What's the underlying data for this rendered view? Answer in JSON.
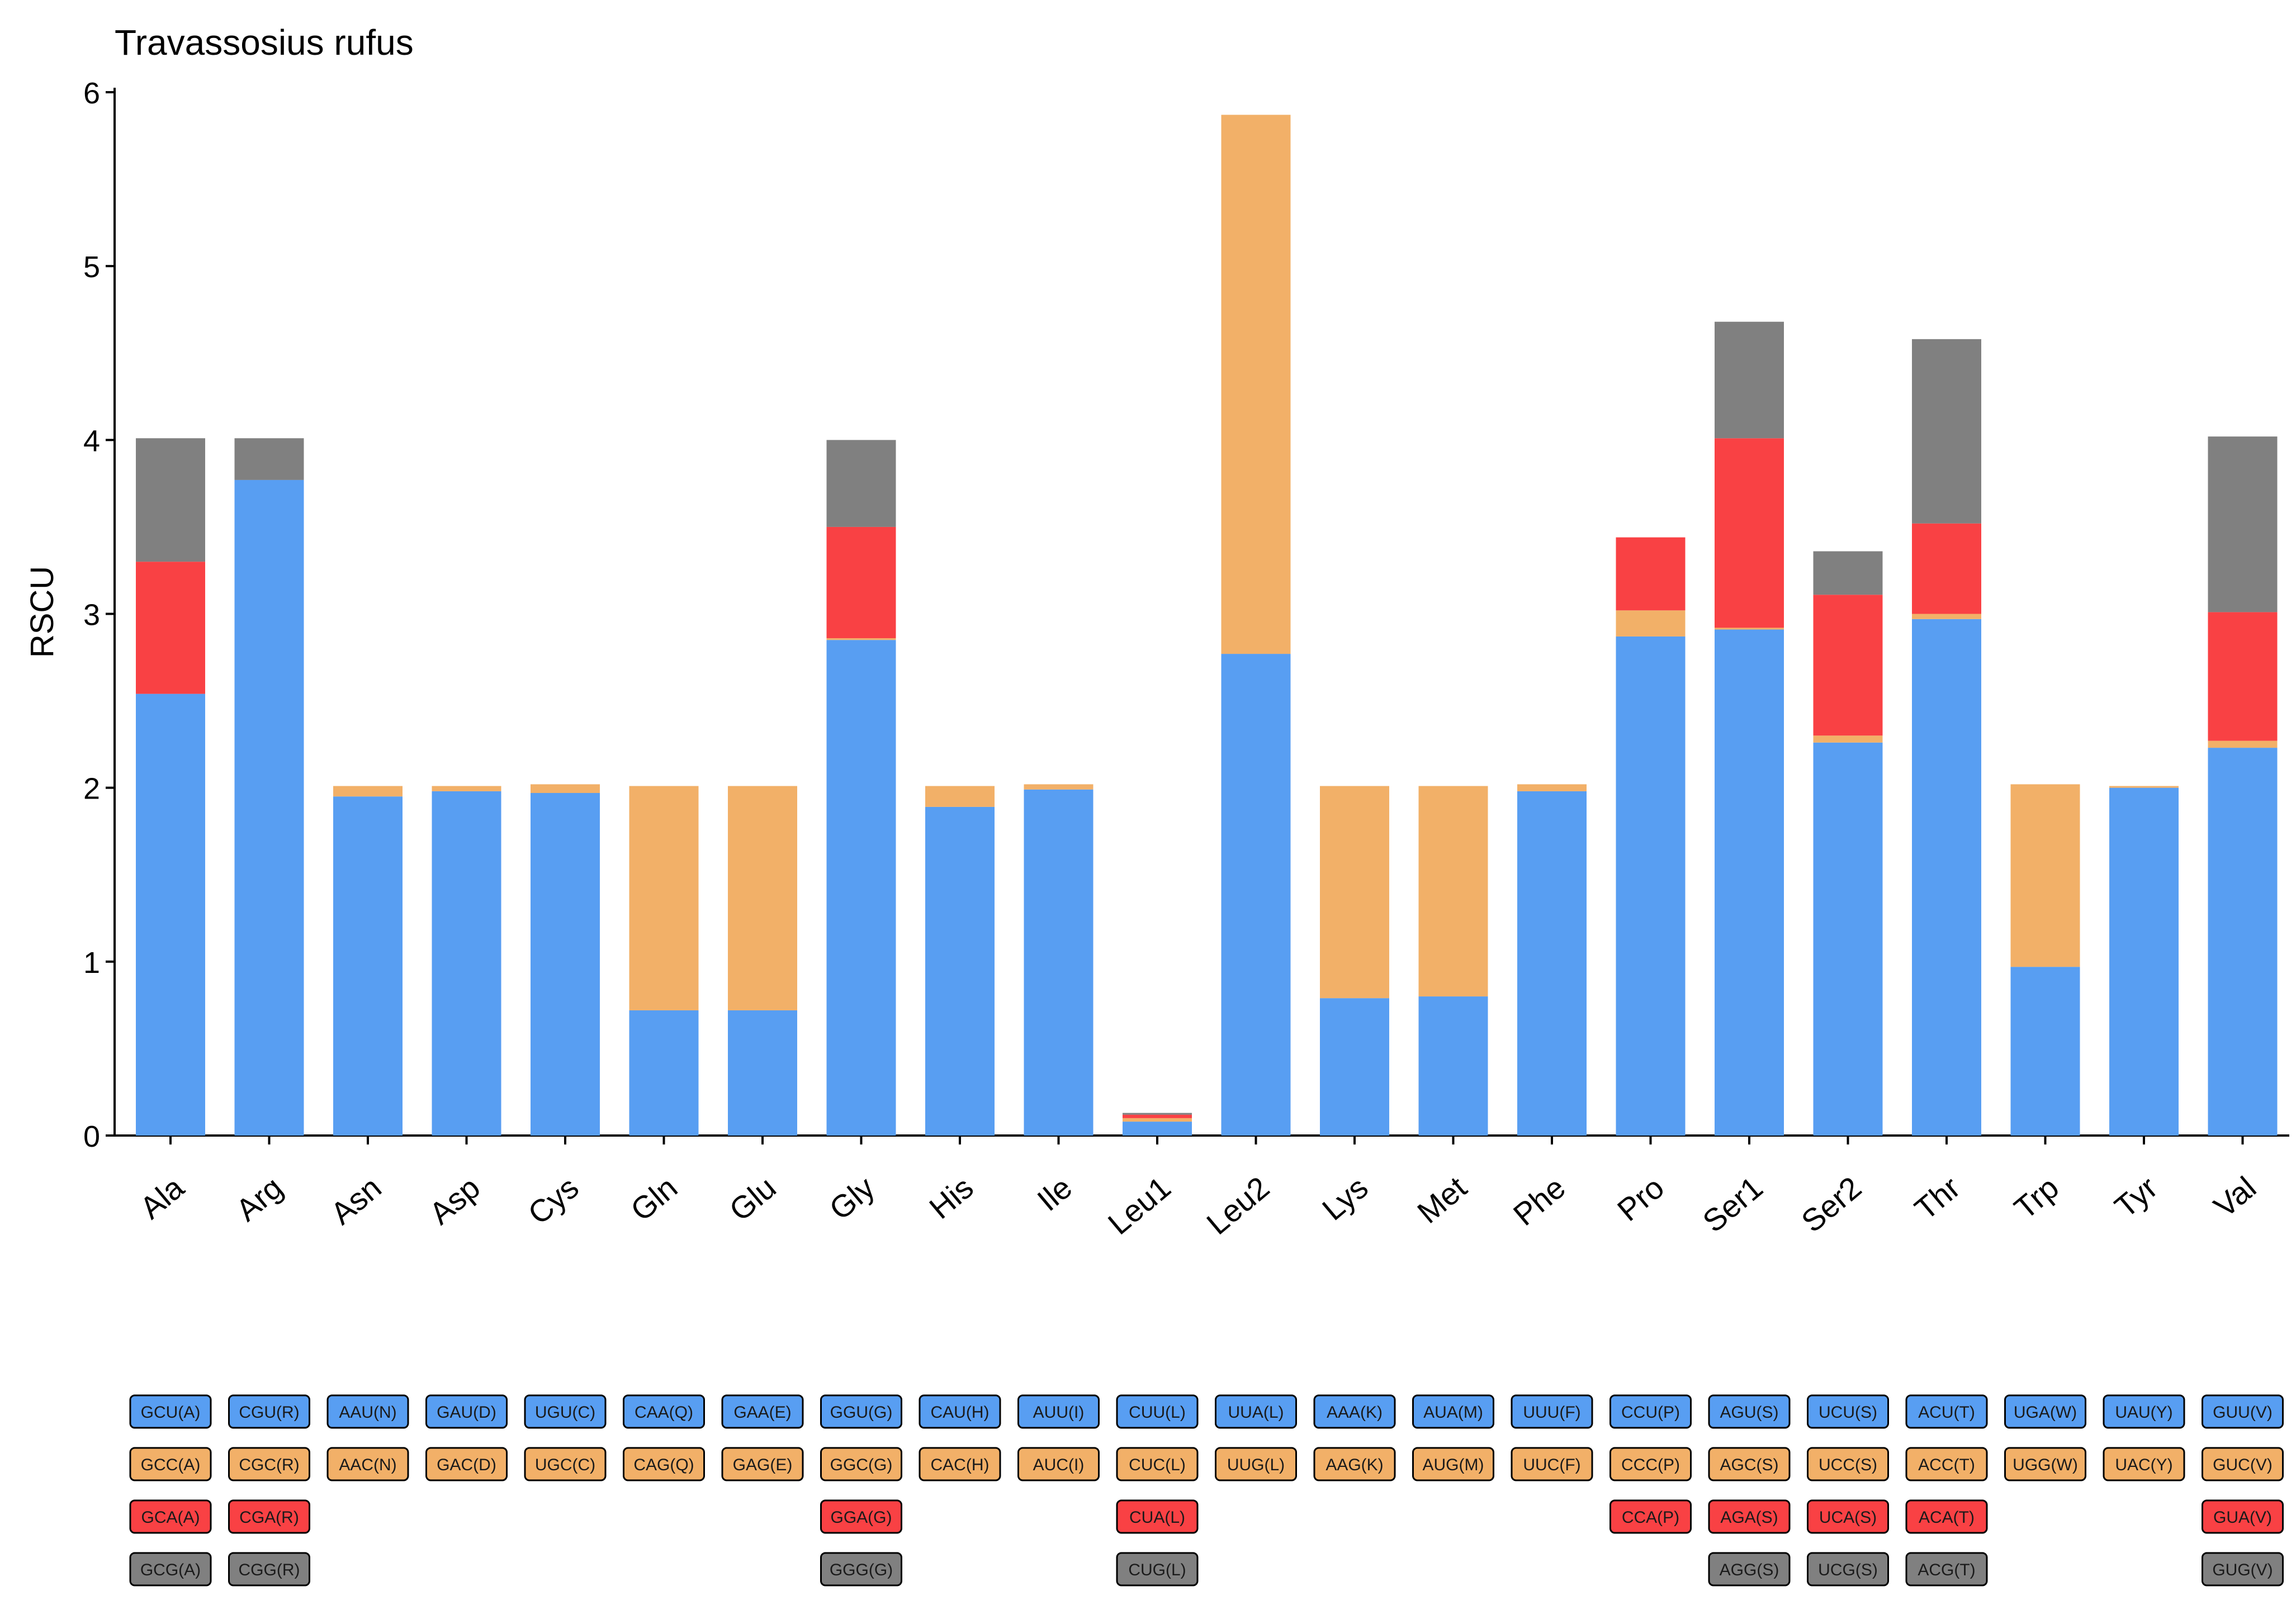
{
  "chart_data": {
    "type": "bar",
    "stacked": true,
    "title": "Travassosius rufus",
    "xlabel": "",
    "ylabel": "RSCU",
    "ylim": [
      0,
      6
    ],
    "yticks": [
      0,
      1,
      2,
      3,
      4,
      5,
      6
    ],
    "grid": false,
    "legend": "codon-label-grid-below",
    "categories": [
      "Ala",
      "Arg",
      "Asn",
      "Asp",
      "Cys",
      "Gln",
      "Glu",
      "Gly",
      "His",
      "Ile",
      "Leu1",
      "Leu2",
      "Lys",
      "Met",
      "Phe",
      "Pro",
      "Ser1",
      "Ser2",
      "Thr",
      "Trp",
      "Tyr",
      "Val"
    ],
    "series": [
      {
        "color": "#589EF2",
        "values": [
          2.54,
          3.77,
          1.95,
          1.98,
          1.97,
          0.72,
          0.72,
          2.85,
          1.89,
          1.99,
          0.08,
          2.77,
          0.79,
          0.8,
          1.98,
          2.87,
          2.91,
          2.26,
          2.97,
          0.97,
          2.0,
          2.23
        ]
      },
      {
        "color": "#F2B068",
        "values": [
          0.0,
          0.0,
          0.06,
          0.03,
          0.05,
          1.29,
          1.29,
          0.01,
          0.12,
          0.03,
          0.02,
          3.1,
          1.22,
          1.21,
          0.04,
          0.15,
          0.01,
          0.04,
          0.03,
          1.05,
          0.01,
          0.04
        ]
      },
      {
        "color": "#F94144",
        "values": [
          0.76,
          0.0,
          0.0,
          0.0,
          0.0,
          0.0,
          0.0,
          0.64,
          0.0,
          0.0,
          0.02,
          0.0,
          0.0,
          0.0,
          0.0,
          0.42,
          1.09,
          0.81,
          0.52,
          0.0,
          0.0,
          0.74
        ]
      },
      {
        "color": "#808080",
        "values": [
          0.71,
          0.24,
          0.0,
          0.0,
          0.0,
          0.0,
          0.0,
          0.5,
          0.0,
          0.0,
          0.01,
          0.0,
          0.0,
          0.0,
          0.0,
          0.0,
          0.67,
          0.25,
          1.06,
          0.0,
          0.0,
          1.01
        ]
      }
    ],
    "codon_labels": [
      [
        "GCU(A)",
        "GCC(A)",
        "GCA(A)",
        "GCG(A)"
      ],
      [
        "CGU(R)",
        "CGC(R)",
        "CGA(R)",
        "CGG(R)"
      ],
      [
        "AAU(N)",
        "AAC(N)",
        "",
        ""
      ],
      [
        "GAU(D)",
        "GAC(D)",
        "",
        ""
      ],
      [
        "UGU(C)",
        "UGC(C)",
        "",
        ""
      ],
      [
        "CAA(Q)",
        "CAG(Q)",
        "",
        ""
      ],
      [
        "GAA(E)",
        "GAG(E)",
        "",
        ""
      ],
      [
        "GGU(G)",
        "GGC(G)",
        "GGA(G)",
        "GGG(G)"
      ],
      [
        "CAU(H)",
        "CAC(H)",
        "",
        ""
      ],
      [
        "AUU(I)",
        "AUC(I)",
        "",
        ""
      ],
      [
        "CUU(L)",
        "CUC(L)",
        "CUA(L)",
        "CUG(L)"
      ],
      [
        "UUA(L)",
        "UUG(L)",
        "",
        ""
      ],
      [
        "AAA(K)",
        "AAG(K)",
        "",
        ""
      ],
      [
        "AUA(M)",
        "AUG(M)",
        "",
        ""
      ],
      [
        "UUU(F)",
        "UUC(F)",
        "",
        ""
      ],
      [
        "CCU(P)",
        "CCC(P)",
        "CCA(P)",
        ""
      ],
      [
        "AGU(S)",
        "AGC(S)",
        "AGA(S)",
        "AGG(S)"
      ],
      [
        "UCU(S)",
        "UCC(S)",
        "UCA(S)",
        "UCG(S)"
      ],
      [
        "ACU(T)",
        "ACC(T)",
        "ACA(T)",
        "ACG(T)"
      ],
      [
        "UGA(W)",
        "UGG(W)",
        "",
        ""
      ],
      [
        "UAU(Y)",
        "UAC(Y)",
        "",
        ""
      ],
      [
        "GUU(V)",
        "GUC(V)",
        "GUA(V)",
        "GUG(V)"
      ]
    ]
  }
}
